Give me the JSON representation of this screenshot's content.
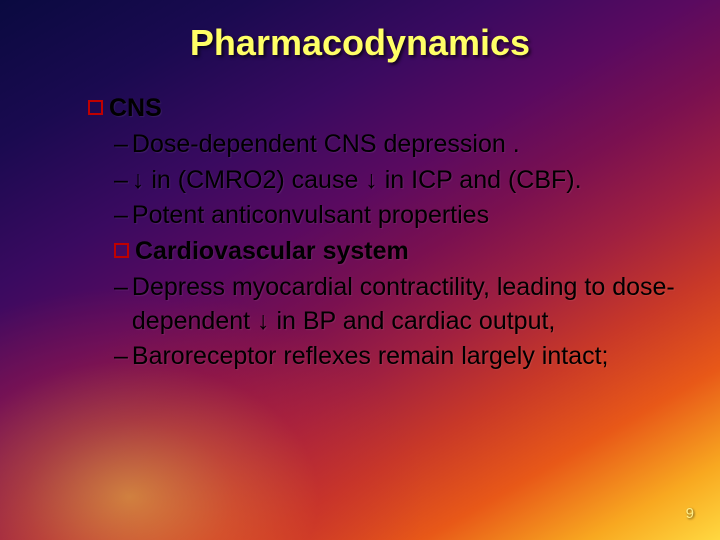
{
  "slide": {
    "title": "Pharmacodynamics",
    "page_number": "9",
    "background": {
      "gradient_colors": [
        "#0a0a40",
        "#3a0a60",
        "#7a1050",
        "#c83828",
        "#f8a820",
        "#ffd840"
      ],
      "title_color": "#ffff66",
      "body_text_color": "#000000",
      "bullet_border_color": "#c00000"
    },
    "typography": {
      "title_fontsize": 36,
      "body_fontsize": 25,
      "font_family": "Arial",
      "title_weight": "bold"
    },
    "body": {
      "section1": {
        "heading": "CNS",
        "items": [
          "Dose-dependent CNS depression .",
          "↓ in (CMRO2) cause ↓ in ICP and (CBF).",
          "Potent anticonvulsant properties"
        ]
      },
      "section2": {
        "heading": "Cardiovascular system",
        "items": [
          "Depress myocardial contractility, leading to dose-dependent ↓ in BP and cardiac output,",
          "Baroreceptor reflexes remain largely intact;"
        ]
      }
    }
  }
}
